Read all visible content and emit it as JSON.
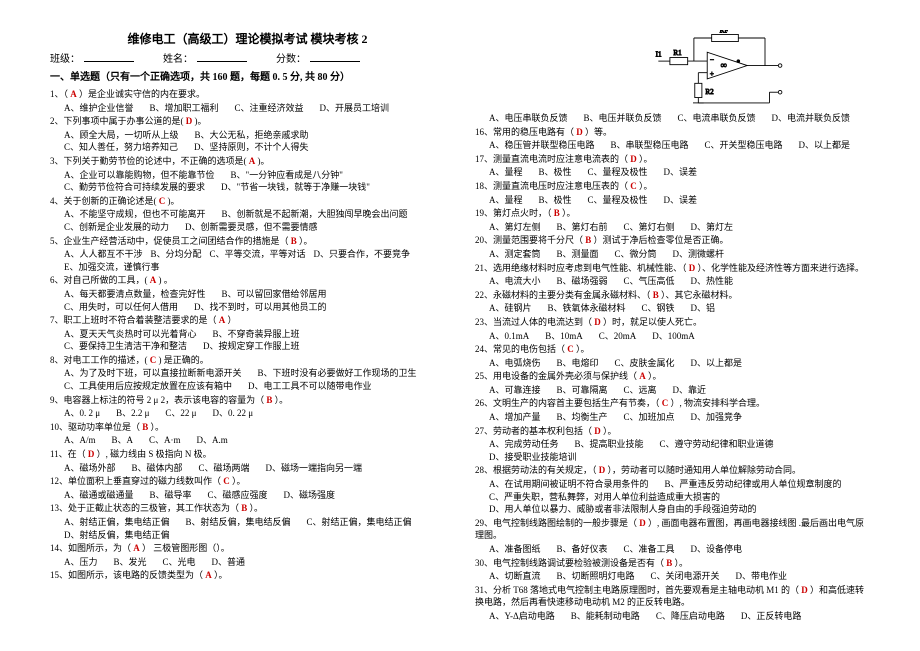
{
  "title": "维修电工（高级工）理论模拟考试    模块考核 2",
  "header": {
    "class_label": "班级：",
    "name_label": "姓名：",
    "score_label": "分数："
  },
  "section1": "一、单选题（只有一个正确选项，共 160  题，每题 0. 5 分, 共 80 分）",
  "answer_colors": {
    "correct": "#cc0000"
  },
  "left": [
    {
      "n": "1",
      "stem": "（  A  ）是企业诚实守信的内在要求。",
      "ans": "A",
      "opts": [
        "A、维护企业信誉",
        "B、增加职工福利",
        "C、注重经济效益",
        "D、开展员工培训"
      ]
    },
    {
      "n": "2",
      "stem": "下列事项中属于办事公道的是(  D  )。",
      "ans": "D",
      "opts": [
        "A、顾全大局，一切听从上级",
        "B、大公无私，拒绝亲戚求助",
        "C、知人善任，努力培养知己",
        "D、坚持原则，不计个人得失"
      ]
    },
    {
      "n": "3",
      "stem": "下列关于勤劳节俭的论述中，不正确的选项是(  A  )。",
      "ans": "A",
      "opts": [
        "A、企业可以靠能购物，但不能靠节俭",
        "B、\"一分钟应看成是八分钟\"",
        "C、勤劳节俭符合可持续发展的要求",
        "D、\"节省一块钱，就等于净赚一块钱\""
      ]
    },
    {
      "n": "4",
      "stem": "关于创新的正确论述是(  C  )。",
      "ans": "C",
      "opts": [
        "A、不能坚守成规，但也不可能离开",
        "B、创新就是不起新潮，大胆独闯早晚会出问题",
        "C、创新是企业发展的动力",
        "D、创新需要灵感，但不需要情感"
      ]
    },
    {
      "n": "5",
      "stem": "企业生产经营活动中，促使员工之间团结合作的措施是（ B ）。",
      "ans": "B",
      "opts": [
        "A、人人都互不干涉",
        "B、分均分配",
        "C、平等交流，平等对话",
        "D、只要合作，不要竞争",
        "E、加强交流，谨慎行事"
      ]
    },
    {
      "n": "6",
      "stem": "对自己所做的工具，(  A  ) 。",
      "ans": "A",
      "opts": [
        "A、每天都要清点数量，检查完好性",
        "B、可以留回家借给邻居用",
        "C、用失时，可以任何人借用",
        "D、找不到时，可以用其他员工的"
      ]
    },
    {
      "n": "7",
      "stem": "职工上班时不符合着装整洁要求的是（ A ）",
      "ans": "A",
      "opts": [
        "A、夏天天气炎热时可以光着背心",
        "B、不穿奇装异服上班",
        "C、要保持卫生清洁干净和整洁",
        "D、按规定穿工作服上班"
      ]
    },
    {
      "n": "8",
      "stem": "对电工工作的描述，(  C  ) 是正确的。",
      "ans": "C",
      "opts": [
        "A、为了及时下班，可以直接拉断新电源开关",
        "B、下班时没有必要做好工作现场的卫生",
        "C、工具使用后应按规定放置在应该有箱中",
        "D、电工工具不可以随带电作业"
      ]
    },
    {
      "n": "9",
      "stem": "电容器上标注的符号 2 μ 2，表示该电容的容量为（ B ）。",
      "ans": "B",
      "opts": [
        "A、0. 2 μ",
        "B、2.2 μ",
        "C、22 μ",
        "D、0. 22 μ"
      ]
    },
    {
      "n": "10",
      "stem": "驱动功率单位是（ B ）。",
      "ans": "B",
      "opts": [
        "A、A/m",
        "B、A",
        "C、A·m",
        "D、A.m"
      ]
    },
    {
      "n": "11",
      "stem": "在（ D ）, 磁力线由 S 极指向 N 极。",
      "ans": "D",
      "opts": [
        "A、磁场外部",
        "B、磁体内部",
        "C、磁场两端",
        "D、磁场一端指向另一端"
      ]
    },
    {
      "n": "12",
      "stem": "单位面积上垂直穿过的磁力线数叫作（ C ）。",
      "ans": "C",
      "opts": [
        "A、磁通或磁通量",
        "B、磁导率",
        "C、磁感应强度",
        "D、磁场强度"
      ]
    },
    {
      "n": "13",
      "stem": "处于正截止状态的三极管，其工作状态为（ B ）。",
      "ans": "B",
      "opts": [
        "A、射结正偏，集电结正偏",
        "B、射结反偏，集电结反偏",
        "C、射结正偏，集电结正偏",
        "D、射结反偏，集电结正偏"
      ]
    },
    {
      "n": "14",
      "stem": "如图所示，为（ A ） 三极管图形图（）。",
      "ans": "A",
      "opts": [
        "A、压力",
        "B、发光",
        "C、光电",
        "D、普通"
      ]
    },
    {
      "n": "15",
      "stem": "如图所示，该电路的反馈类型为（ A ）。",
      "ans": "A"
    }
  ],
  "right": [
    {
      "opts": [
        "A、电压串联负反馈",
        "B、电压并联负反馈",
        "C、电流串联负反馈",
        "D、电流并联负反馈"
      ]
    },
    {
      "n": "16",
      "stem": "常用的稳压电路有（ D ）等。",
      "ans": "D",
      "opts": [
        "A、稳压管并联型稳压电路",
        "B、串联型稳压电路",
        "C、开关型稳压电路",
        "D、以上都是"
      ]
    },
    {
      "n": "17",
      "stem": "测量直流电流时应注意电流表的（ D ）。",
      "ans": "D",
      "opts": [
        "A、量程",
        "B、极性",
        "C、量程及极性",
        "D、误差"
      ]
    },
    {
      "n": "18",
      "stem": "测量直流电压时应注意电压表的（ C ）。",
      "ans": "C",
      "opts": [
        "A、量程",
        "B、极性",
        "C、量程及极性",
        "D、误差"
      ]
    },
    {
      "n": "19",
      "stem": "第灯点火时，（ B ）。",
      "ans": "B",
      "opts": [
        "A、第灯左侧",
        "B、第灯右前",
        "C、第灯右侧",
        "D、第灯左"
      ]
    },
    {
      "n": "20",
      "stem": "测量范围要将千分尺（ B ）测试于净后检查零位是否正确。",
      "ans": "B",
      "opts": [
        "A、测定套筒",
        "B、测量面",
        "C、微分筒",
        "D、测微螺杆"
      ]
    },
    {
      "n": "21",
      "stem": "选用绝缘材料时应考虑到电气性能、机械性能、（ D ）、化学性能及经济性等方面来进行选择。",
      "ans": "D",
      "opts": [
        "A、电流大小",
        "B、磁场强弱",
        "C、气压高低",
        "D、热性能"
      ]
    },
    {
      "n": "22",
      "stem": "永磁材料的主要分类有金属永磁材料、（ B ）、其它永磁材料。",
      "ans": "B",
      "opts": [
        "A、硅钢片",
        "B、铁氧体永磁材料",
        "C、钢铁",
        "D、铝"
      ]
    },
    {
      "n": "23",
      "stem": "当流过人体的电流达到（ D ）时，就足以使人死亡。",
      "ans": "D",
      "opts": [
        "A、0.1mA",
        "B、10mA",
        "C、20mA",
        "D、100mA"
      ]
    },
    {
      "n": "24",
      "stem": "常见的电伤包括（ C ）。",
      "ans": "C",
      "opts": [
        "A、电弧烧伤",
        "B、电熔印",
        "C、皮肤金属化",
        "D、以上都是"
      ]
    },
    {
      "n": "25",
      "stem": "用电设备的金属外壳必须与保护线（ A ）。",
      "ans": "A",
      "opts": [
        "A、可靠连接",
        "B、可靠隔离",
        "C、远离",
        "D、靠近"
      ]
    },
    {
      "n": "26",
      "stem": "文明生产的内容首主要包括生产有节奏，（ C ）, 物流安排科学合理。",
      "ans": "C",
      "opts": [
        "A、增加产量",
        "B、均衡生产",
        "C、加班加点",
        "D、加强竞争"
      ]
    },
    {
      "n": "27",
      "stem": "劳动者的基本权利包括（ D ）。",
      "ans": "D",
      "opts": [
        "A、完成劳动任务",
        "B、提高职业技能",
        "C、遵守劳动纪律和职业道德",
        "D、接受职业技能培训"
      ]
    },
    {
      "n": "28",
      "stem": "根据劳动法的有关规定，（ D ），劳动者可以随时通知用人单位解除劳动合同。",
      "ans": "D",
      "opts": [
        "A、在试用期间被证明不符合录用条件的",
        "B、严重违反劳动纪律或用人单位规章制度的",
        "C、严重失职，营私舞弊，对用人单位利益造成重大损害的",
        "D、用人单位以暴力、威胁或者非法限制人身自由的手段强迫劳动的"
      ]
    },
    {
      "n": "29",
      "stem": "电气控制线路图绘制的一般步骤是（ D ）, 画面电器布置图，再画电器接线图 .最后画出电气原理图。",
      "ans": "D",
      "opts": [
        "A、准备图纸",
        "B、备好仪表",
        "C、准备工具",
        "D、设备停电"
      ]
    },
    {
      "n": "30",
      "stem": "电气控制线路调试要检验被测设备是否有（ B ）。",
      "ans": "B",
      "opts": [
        "A、切断直流",
        "B、切断照明灯电路",
        "C、关闭电源开关",
        "D、带电作业"
      ]
    },
    {
      "n": "31",
      "stem": "分析 T68 落地式电气控制主电路原理图时，首先要观看是主轴电动机 M1 的（ D ）和高低速转换电路，然后再看快速移动电动机 M2 的正反转电路。",
      "ans": "D",
      "opts": [
        "A、Y-Δ启动电路",
        "B、能耗制动电路",
        "C、降压启动电路",
        "D、正反转电路"
      ]
    }
  ],
  "circuit": {
    "labels": {
      "Rf": "RF",
      "I1": "I1",
      "R1": "R1",
      "R2": "R2",
      "opamp": "∞"
    },
    "colors": {
      "stroke": "#000000",
      "fill": "#ffffff"
    }
  }
}
